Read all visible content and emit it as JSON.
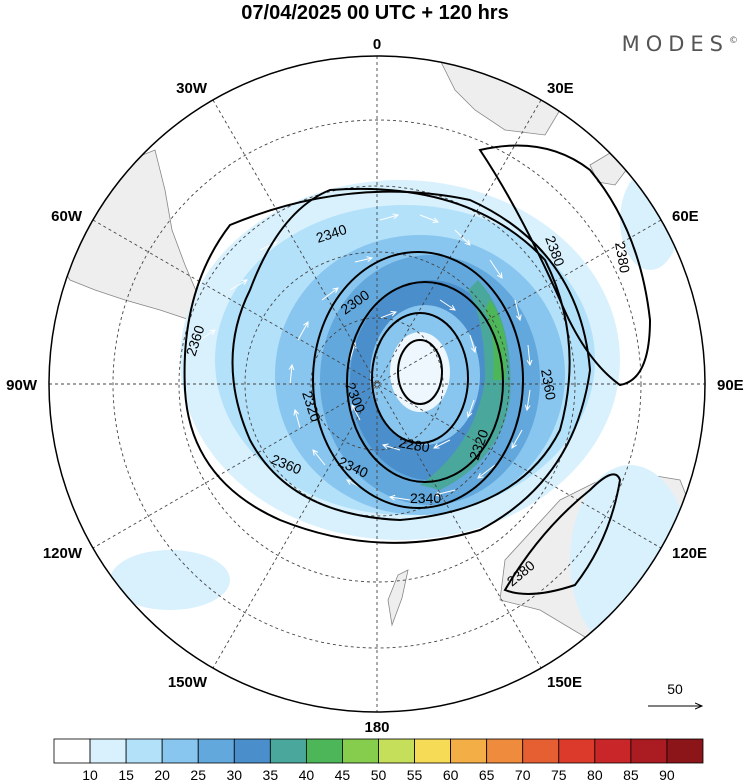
{
  "title": "07/04/2025  00 UTC  + 120 hrs",
  "brand": "MODES",
  "brand_mark": "©",
  "longitude_labels": {
    "0": "0",
    "30E": "30E",
    "60E": "60E",
    "90E": "90E",
    "120E": "120E",
    "150E": "150E",
    "180": "180",
    "150W": "150W",
    "120W": "120W",
    "90W": "90W",
    "60W": "60W",
    "30W": "30W"
  },
  "contour_labels": [
    "2340",
    "2300",
    "2360",
    "2320",
    "2300",
    "2280",
    "2320",
    "2340",
    "2340",
    "2360",
    "2360",
    "2380",
    "2380",
    "2380"
  ],
  "vector_reference": "50",
  "colorbar": {
    "labels": [
      "10",
      "15",
      "20",
      "25",
      "30",
      "35",
      "40",
      "45",
      "50",
      "55",
      "60",
      "65",
      "70",
      "75",
      "80",
      "85",
      "90"
    ],
    "colors": [
      "#ffffff",
      "#d8f1fd",
      "#b3e1fa",
      "#89c6ef",
      "#62a8dd",
      "#4a8ecb",
      "#4aa79b",
      "#4cb659",
      "#86cc4d",
      "#c6df5a",
      "#f6db57",
      "#f4ae46",
      "#ef8b3c",
      "#e65f32",
      "#dc3b2c",
      "#c82628",
      "#ab1c22",
      "#8c1519"
    ]
  },
  "colors": {
    "land": "#eeeeee",
    "ocean": "#ffffff",
    "contour": "#000000",
    "graticule": "#444444"
  }
}
